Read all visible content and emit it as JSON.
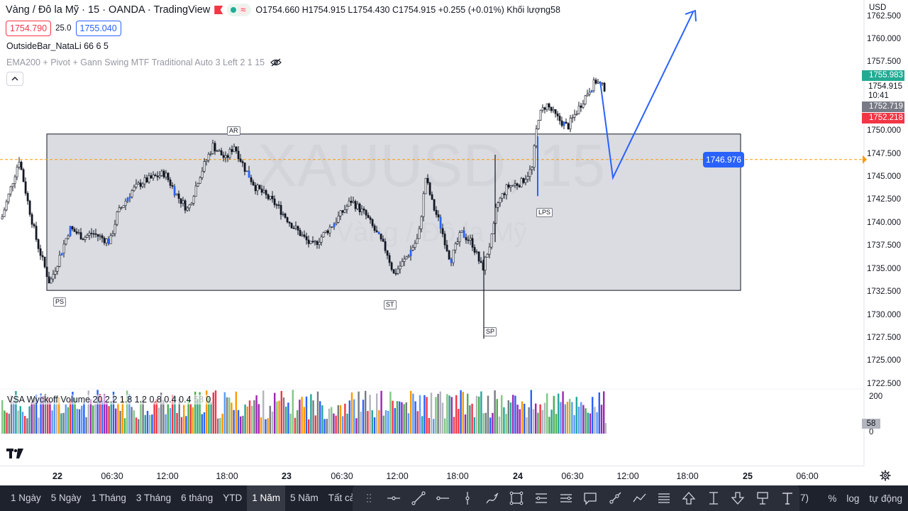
{
  "header": {
    "title": "Vàng / Đô la Mỹ · 15 · OANDA · TradingView",
    "ohlc": {
      "open_label": "O",
      "open": "1754.660",
      "high_label": "H",
      "high": "1754.915",
      "low_label": "L",
      "low": "1754.430",
      "close_label": "C",
      "close": "1754.915",
      "change": "+0.255 (+0.01%)",
      "volume_label": "Khối lượng",
      "volume": "58"
    },
    "market_status_icon": "dot-icon",
    "realtime_icon": "wave-icon"
  },
  "quote": {
    "sell": "1754.790",
    "spread": "25.0",
    "buy": "1755.040"
  },
  "indicators": {
    "outside_bar": "OutsideBar_NataLi 66 6 5",
    "ema_pivot": "EMA200 + Pivot + Gann Swing MTF Traditional Auto 3 Left 2 1 15",
    "vsa": "VSA Wyckoff Volume 20 2.2 1.8 1.2 0.8 0.4 0.4",
    "vsa_value": "58",
    "vsa_zero": "0"
  },
  "watermark": {
    "symbol": "XAUUSD, 15",
    "name": "Vàng / Đô la Mỹ"
  },
  "price_axis": {
    "currency": "USD",
    "ticks": [
      "1762.500",
      "1760.000",
      "1757.500",
      "1755.000",
      "1752.500",
      "1750.000",
      "1747.500",
      "1745.000",
      "1742.500",
      "1740.000",
      "1737.500",
      "1735.000",
      "1732.500",
      "1730.000",
      "1727.500",
      "1725.000",
      "1722.500"
    ],
    "badge_green": "1755.983",
    "last_price": "1754.915",
    "countdown": "10:41",
    "badge_grey": "1752.719",
    "badge_red": "1752.218",
    "level_label": "1746.976",
    "volume_ticks": [
      "200",
      "0"
    ],
    "volume_badge": "58"
  },
  "wyckoff_labels": [
    "PS",
    "AR",
    "ST",
    "SP",
    "LPS"
  ],
  "time_axis": {
    "labels": [
      "22",
      "06:30",
      "12:00",
      "18:00",
      "23",
      "06:30",
      "12:00",
      "18:00",
      "24",
      "06:30",
      "12:00",
      "18:00",
      "25",
      "06:00"
    ]
  },
  "ranges": [
    "1 Ngày",
    "5 Ngày",
    "1 Tháng",
    "3 Tháng",
    "6 tháng",
    "YTD",
    "1 Năm",
    "5 Năm",
    "Tất cả"
  ],
  "active_range": "1 Năm",
  "toolbar_partial": "7)",
  "right_controls": {
    "percent": "%",
    "log": "log",
    "auto": "tự động"
  },
  "colors": {
    "up": "#089981",
    "down": "#f23645",
    "accent": "#2962ff",
    "range_box": "#d1d4dc",
    "toolbar_bg": "#1e222d"
  },
  "chart_data": {
    "type": "candlestick",
    "title": "Vàng / Đô la Mỹ · 15 · OANDA · TradingView",
    "ylim": [
      1722.5,
      1762.5
    ],
    "range_box": {
      "top": 1749.75,
      "bottom": 1732.75
    },
    "level": 1746.976,
    "forecast_path": [
      1755.5,
      1745.0,
      1763.0
    ]
  }
}
